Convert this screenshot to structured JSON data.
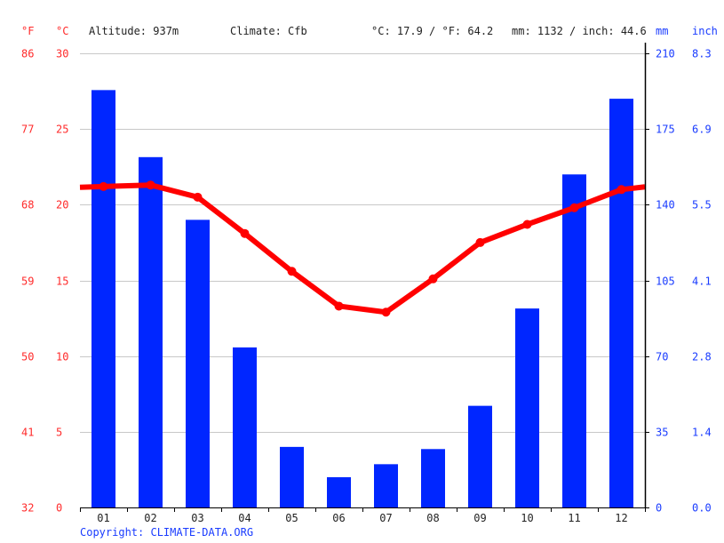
{
  "header": {
    "unit_f": "°F",
    "unit_c": "°C",
    "altitude": "Altitude: 937m",
    "climate": "Climate: Cfb",
    "avg_temp": "°C: 17.9 / °F: 64.2",
    "precip_total": "mm: 1132 / inch: 44.6",
    "unit_mm": "mm",
    "unit_inch": "inch"
  },
  "footer": {
    "copyright": "Copyright: CLIMATE-DATA.ORG"
  },
  "colors": {
    "temperature": "#ff0000",
    "precipitation": "#0026ff",
    "left_axis_text": "#ff2a2a",
    "right_axis_text": "#1a3cff",
    "grid": "#c8c8c8"
  },
  "chart_data": {
    "type": "bar+line",
    "title": "",
    "categories": [
      "01",
      "02",
      "03",
      "04",
      "05",
      "06",
      "07",
      "08",
      "09",
      "10",
      "11",
      "12"
    ],
    "series": [
      {
        "name": "Precipitation (mm)",
        "type": "bar",
        "axis": "right",
        "values": [
          193,
          162,
          133,
          74,
          28,
          14,
          20,
          27,
          47,
          92,
          154,
          189
        ]
      },
      {
        "name": "Temperature (°C)",
        "type": "line",
        "axis": "left",
        "values": [
          21.2,
          21.3,
          20.5,
          18.1,
          15.6,
          13.3,
          12.9,
          15.1,
          17.5,
          18.7,
          19.8,
          21.0
        ]
      }
    ],
    "left_axis": {
      "label_c": "°C",
      "label_f": "°F",
      "ticks_c": [
        0,
        5,
        10,
        15,
        20,
        25,
        30
      ],
      "ticks_f": [
        32,
        41,
        50,
        59,
        68,
        77,
        86
      ],
      "ylim": [
        0,
        30
      ]
    },
    "right_axis": {
      "label_mm": "mm",
      "label_inch": "inch",
      "ticks_mm": [
        0,
        35,
        70,
        105,
        140,
        175,
        210
      ],
      "ticks_inch": [
        "0.0",
        "1.4",
        "2.8",
        "4.1",
        "5.5",
        "6.9",
        "8.3"
      ],
      "ylim": [
        0,
        210
      ]
    },
    "xlabel": "",
    "ylabel_left": "°C / °F",
    "ylabel_right": "mm / inch",
    "grid": true,
    "legend": null
  }
}
